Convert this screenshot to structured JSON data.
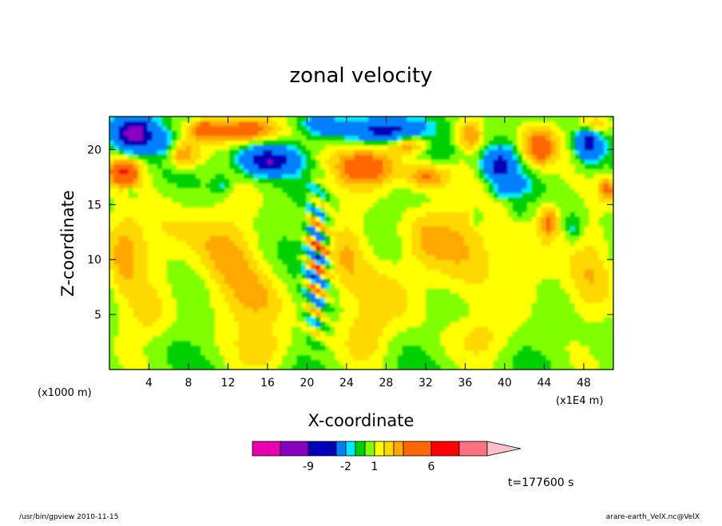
{
  "chart_data": {
    "type": "heatmap",
    "title": "zonal velocity",
    "xlabel": "X-coordinate",
    "ylabel": "Z-coordinate",
    "x_unit": "(x1E4 m)",
    "y_unit": "(x1000 m)",
    "xlim": [
      0,
      51
    ],
    "ylim": [
      0,
      23
    ],
    "x_ticks": [
      "4",
      "8",
      "12",
      "16",
      "20",
      "24",
      "28",
      "32",
      "36",
      "40",
      "44",
      "48"
    ],
    "y_ticks": [
      "5",
      "10",
      "15",
      "20"
    ],
    "colorbar": {
      "levels": [
        -12,
        -9,
        -6,
        -2,
        -1,
        0,
        1,
        2,
        3,
        4,
        6,
        9,
        12
      ],
      "colors": [
        "#e800b0",
        "#8a00c0",
        "#0000b8",
        "#0080ff",
        "#00e8ff",
        "#00d000",
        "#80ff00",
        "#ffff00",
        "#ffd800",
        "#ffa800",
        "#ff6800",
        "#ff0000",
        "#ff7080",
        "#ffc0c8"
      ],
      "labels": [
        "-9",
        "-2",
        "1",
        "6"
      ]
    },
    "time_label": "t=177600 s"
  },
  "footer": {
    "left": "/usr/bin/gpview   2010-11-15",
    "right": "arare-earth_VelX.nc@VelX"
  }
}
